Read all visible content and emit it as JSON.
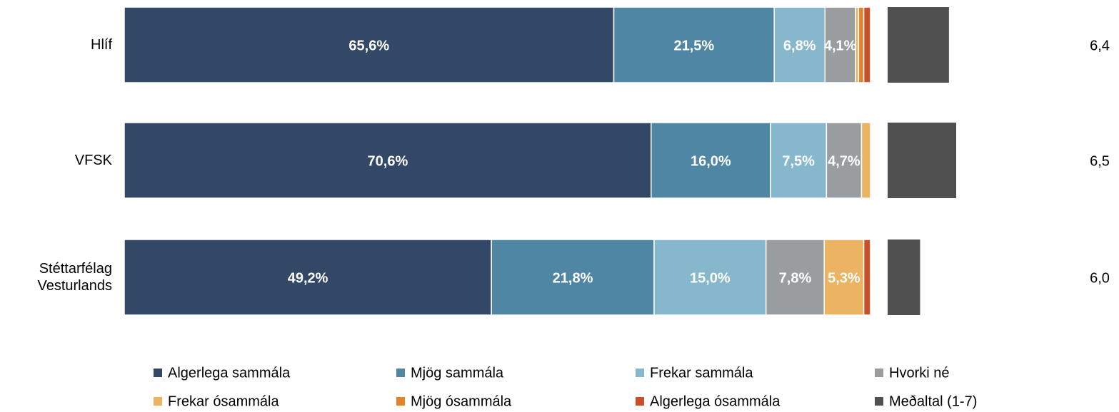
{
  "chart_data": {
    "type": "bar",
    "orientation": "horizontal",
    "stacked": true,
    "categories": [
      "Hlíf",
      "VFSK",
      "Stéttarfélag Vesturlands"
    ],
    "xlim": [
      0,
      100
    ],
    "series": [
      {
        "name": "Algerlega sammála",
        "color": "#334766",
        "values": [
          65.6,
          70.6,
          49.2
        ],
        "value_labels": [
          "65,6%",
          "70,6%",
          "49,2%"
        ]
      },
      {
        "name": "Mjög sammála",
        "color": "#4f86a3",
        "values": [
          21.5,
          16.0,
          21.8
        ],
        "value_labels": [
          "21,5%",
          "16,0%",
          "21,8%"
        ]
      },
      {
        "name": "Frekar sammála",
        "color": "#86b7cd",
        "values": [
          6.8,
          7.5,
          15.0
        ],
        "value_labels": [
          "6,8%",
          "7,5%",
          "15,0%"
        ]
      },
      {
        "name": "Hvorki né",
        "color": "#9a9d9f",
        "values": [
          4.1,
          4.7,
          7.8
        ],
        "value_labels": [
          "4,1%",
          "4,7%",
          "7,8%"
        ]
      },
      {
        "name": "Frekar ósammála",
        "color": "#ecb362",
        "values": [
          0.4,
          1.2,
          5.3
        ],
        "value_labels": [
          null,
          null,
          "5,3%"
        ]
      },
      {
        "name": "Mjög ósammála",
        "color": "#e5822e",
        "values": [
          0.7,
          0,
          0
        ],
        "value_labels": [
          null,
          null,
          null
        ]
      },
      {
        "name": "Algerlega ósammála",
        "color": "#c5502a",
        "values": [
          0.9,
          0,
          0.9
        ],
        "value_labels": [
          null,
          null,
          null
        ]
      }
    ],
    "mean": {
      "name": "Meðaltal (1-7)",
      "color": "#505050",
      "values": [
        6.4,
        6.5,
        6.0
      ],
      "value_labels": [
        "6,4",
        "6,5",
        "6,0"
      ],
      "xlim": [
        5.55,
        6.5
      ]
    }
  }
}
